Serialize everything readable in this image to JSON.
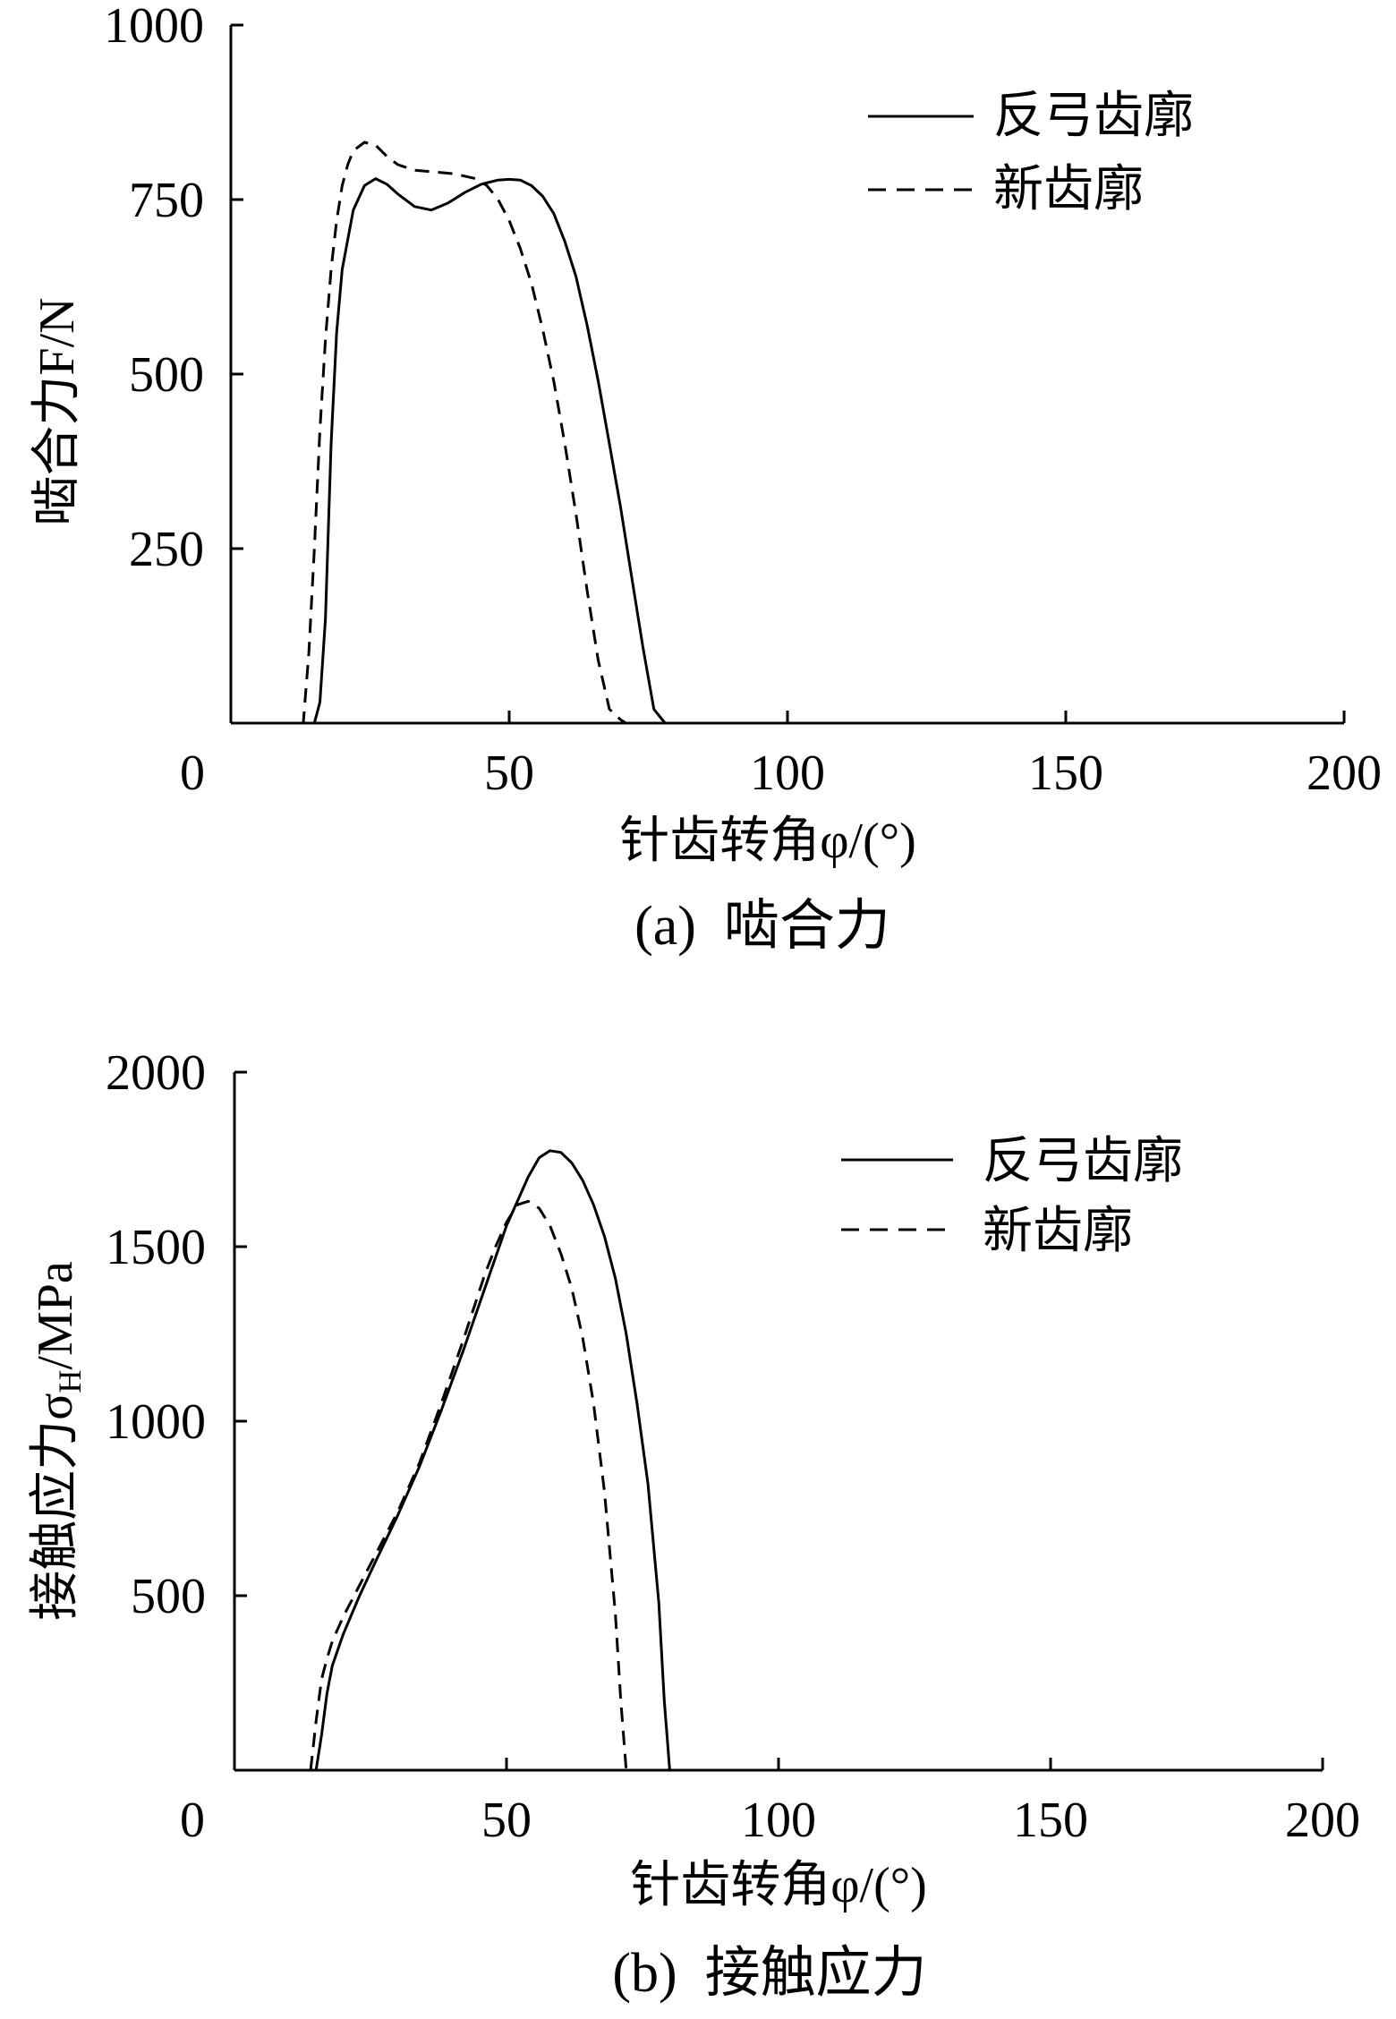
{
  "chart_data": [
    {
      "type": "line",
      "caption": "(a)  啮合力",
      "xlabel": "针齿转角φ/(°)",
      "ylabel": "啮合力F/N",
      "xlim": [
        0,
        200
      ],
      "ylim": [
        0,
        1000
      ],
      "xticks": [
        0,
        50,
        100,
        150,
        200
      ],
      "yticks": [
        250,
        500,
        750,
        1000
      ],
      "xtick_labels": [
        "0",
        "50",
        "100",
        "150",
        "200"
      ],
      "ytick_labels": [
        "250",
        "500",
        "750",
        "1000"
      ],
      "legend_position": "top-right",
      "grid": false,
      "series": [
        {
          "name": "反弓齿廓",
          "style": "solid",
          "x": [
            15,
            16,
            17,
            18,
            19,
            20,
            22,
            24,
            26,
            28,
            30,
            33,
            36,
            39,
            42,
            45,
            48,
            50,
            52,
            54,
            56,
            58,
            60,
            62,
            64,
            66,
            68,
            70,
            72,
            74,
            76,
            78,
            79,
            80,
            90,
            120,
            150,
            180
          ],
          "y": [
            0,
            30,
            150,
            400,
            560,
            650,
            735,
            770,
            780,
            772,
            758,
            740,
            735,
            745,
            760,
            772,
            778,
            779,
            778,
            770,
            755,
            730,
            690,
            640,
            570,
            490,
            400,
            310,
            210,
            110,
            20,
            0,
            0,
            0,
            0,
            0,
            0,
            0
          ]
        },
        {
          "name": "新齿廓",
          "style": "dashed",
          "x": [
            0,
            13,
            14,
            15,
            16,
            17,
            18,
            19,
            20,
            21,
            22,
            24,
            26,
            28,
            30,
            33,
            36,
            40,
            44,
            46,
            48,
            50,
            52,
            54,
            56,
            58,
            60,
            62,
            64,
            66,
            68,
            70,
            71,
            72,
            75,
            80,
            120,
            150,
            180
          ],
          "y": [
            0,
            0,
            100,
            250,
            420,
            550,
            650,
            720,
            770,
            800,
            820,
            832,
            828,
            812,
            800,
            792,
            790,
            787,
            780,
            770,
            750,
            720,
            680,
            630,
            565,
            490,
            400,
            300,
            190,
            90,
            20,
            5,
            0,
            0,
            0,
            0,
            0,
            0,
            0
          ]
        }
      ]
    },
    {
      "type": "line",
      "caption": "(b)  接触应力",
      "xlabel": "针齿转角φ/(°)",
      "ylabel": "接触应力σH/MPa",
      "ylabel_main": "接触应力σ",
      "ylabel_sub": "H",
      "ylabel_unit": "/MPa",
      "xlim": [
        0,
        200
      ],
      "ylim": [
        0,
        2000
      ],
      "xticks": [
        0,
        50,
        100,
        150,
        200
      ],
      "yticks": [
        500,
        1000,
        1500,
        2000
      ],
      "xtick_labels": [
        "0",
        "50",
        "100",
        "150",
        "200"
      ],
      "ytick_labels": [
        "500",
        "1000",
        "1500",
        "2000"
      ],
      "legend_position": "top-right",
      "grid": false,
      "series": [
        {
          "name": "反弓齿廓",
          "style": "solid",
          "x": [
            0,
            15,
            16,
            17,
            18,
            20,
            23,
            26,
            30,
            34,
            38,
            42,
            46,
            50,
            54,
            56,
            58,
            60,
            62,
            64,
            66,
            68,
            70,
            72,
            74,
            76,
            78,
            79,
            80,
            120,
            150,
            180
          ],
          "y": [
            0,
            0,
            100,
            220,
            300,
            390,
            500,
            600,
            730,
            870,
            1030,
            1200,
            1380,
            1560,
            1700,
            1755,
            1775,
            1770,
            1740,
            1690,
            1620,
            1530,
            1410,
            1250,
            1050,
            820,
            480,
            200,
            0,
            0,
            0,
            0
          ]
        },
        {
          "name": "新齿廓",
          "style": "dashed",
          "x": [
            14,
            15,
            16,
            17,
            18,
            20,
            23,
            26,
            30,
            34,
            38,
            42,
            46,
            48,
            50,
            52,
            54,
            56,
            58,
            60,
            62,
            64,
            66,
            68,
            70,
            71,
            72,
            75,
            80,
            120,
            150,
            180
          ],
          "y": [
            0,
            140,
            260,
            320,
            370,
            440,
            530,
            620,
            740,
            880,
            1050,
            1230,
            1420,
            1500,
            1570,
            1620,
            1630,
            1610,
            1560,
            1480,
            1380,
            1240,
            1050,
            800,
            450,
            200,
            0,
            0,
            0,
            0,
            0,
            0
          ]
        }
      ]
    }
  ]
}
